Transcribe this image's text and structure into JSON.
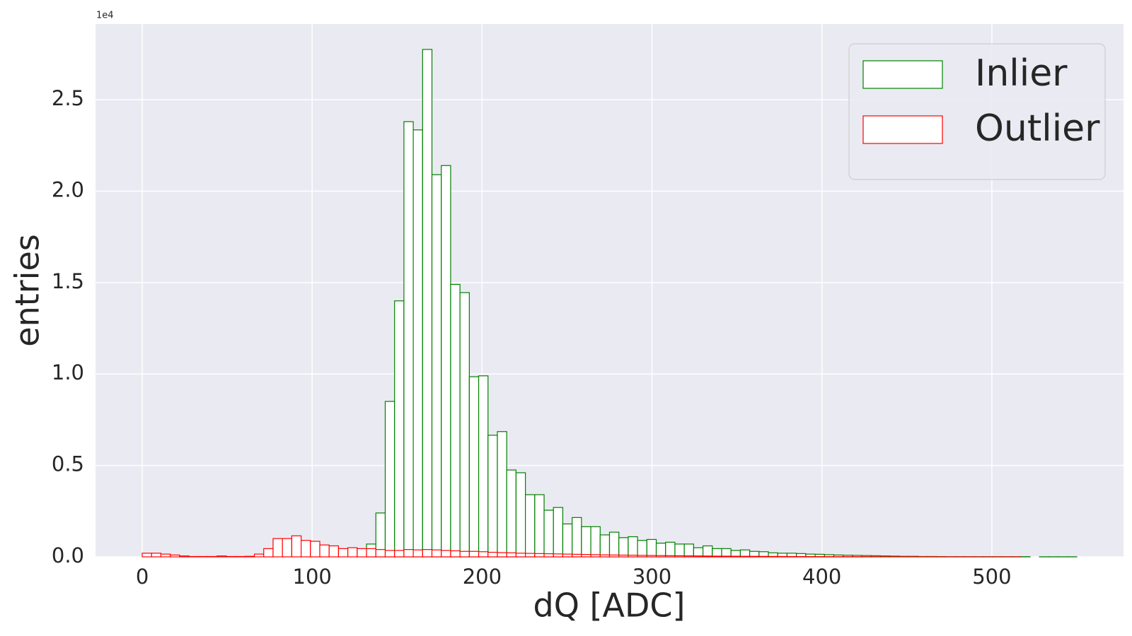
{
  "chart_data": {
    "type": "histogram",
    "x_label": "dQ [ADC]",
    "y_label": "entries",
    "y_offset_label": "1e4",
    "bins": [
      0,
      5.5,
      11,
      16.5,
      22,
      27.5,
      33,
      38.5,
      44,
      49.5,
      55,
      60.5,
      66,
      71.5,
      77,
      82.5,
      88,
      93.5,
      99,
      104.5,
      110,
      115.5,
      121,
      126.5,
      132,
      137.5,
      143,
      148.5,
      154,
      159.5,
      165,
      170.5,
      176,
      181.5,
      187,
      192.5,
      198,
      203.5,
      209,
      214.5,
      220,
      225.5,
      231,
      236.5,
      242,
      247.5,
      253,
      258.5,
      264,
      269.5,
      275,
      280.5,
      286,
      291.5,
      297,
      302.5,
      308,
      313.5,
      319,
      324.5,
      330,
      335.5,
      341,
      346.5,
      352,
      357.5,
      363,
      368.5,
      374,
      379.5,
      385,
      390.5,
      396,
      401.5,
      407,
      412.5,
      418,
      423.5,
      429,
      434.5,
      440,
      445.5,
      451,
      456.5,
      462,
      467.5,
      473,
      478.5,
      484,
      489.5,
      495,
      500.5,
      506,
      511.5,
      517,
      522.5,
      528,
      533.5,
      539,
      544.5,
      550
    ],
    "series": [
      {
        "name": "Inlier",
        "color": "#008000",
        "values": [
          0,
          0,
          0,
          0,
          0,
          0,
          0,
          0,
          0,
          0,
          0,
          0,
          0,
          0,
          0,
          0,
          0,
          0,
          0,
          0,
          0,
          0,
          0,
          0,
          700,
          2400,
          8500,
          14000,
          23800,
          23350,
          27750,
          20900,
          21400,
          14900,
          14450,
          9850,
          9900,
          6650,
          6850,
          4750,
          4600,
          3400,
          3400,
          2550,
          2700,
          1800,
          2150,
          1650,
          1650,
          1200,
          1350,
          1050,
          1100,
          900,
          950,
          750,
          800,
          700,
          700,
          500,
          600,
          450,
          450,
          350,
          380,
          300,
          280,
          220,
          200,
          200,
          180,
          150,
          140,
          120,
          100,
          90,
          80,
          70,
          60,
          50,
          40,
          30,
          30,
          20,
          20,
          15,
          10,
          10,
          10,
          10,
          10,
          10,
          10,
          10,
          10,
          0,
          5,
          5,
          5,
          5
        ]
      },
      {
        "name": "Outlier",
        "color": "#ff0000",
        "values": [
          200,
          200,
          150,
          100,
          50,
          20,
          20,
          20,
          50,
          20,
          20,
          30,
          150,
          450,
          1000,
          1000,
          1150,
          900,
          850,
          650,
          600,
          450,
          500,
          450,
          450,
          400,
          350,
          350,
          400,
          380,
          400,
          380,
          350,
          330,
          300,
          300,
          280,
          250,
          230,
          220,
          200,
          190,
          180,
          170,
          160,
          150,
          140,
          130,
          120,
          110,
          100,
          95,
          90,
          80,
          75,
          70,
          65,
          60,
          55,
          50,
          45,
          40,
          38,
          35,
          32,
          30,
          28,
          25,
          22,
          20,
          18,
          16,
          14,
          12,
          10,
          10,
          8,
          8,
          6,
          6,
          5,
          5,
          4,
          4,
          3,
          3,
          2,
          2,
          2,
          1,
          1,
          1,
          1,
          1,
          0,
          0,
          0,
          0,
          0,
          0
        ]
      }
    ],
    "xlim": [
      -27.5,
      577.5
    ],
    "ylim": [
      0,
      29140
    ],
    "xticks": [
      0,
      100,
      200,
      300,
      400,
      500
    ],
    "yticks": [
      {
        "value": 0,
        "label": "0.0"
      },
      {
        "value": 5000,
        "label": "0.5"
      },
      {
        "value": 10000,
        "label": "1.0"
      },
      {
        "value": 15000,
        "label": "1.5"
      },
      {
        "value": 20000,
        "label": "2.0"
      },
      {
        "value": 25000,
        "label": "2.5"
      }
    ],
    "grid": true,
    "legend": "upper right"
  }
}
